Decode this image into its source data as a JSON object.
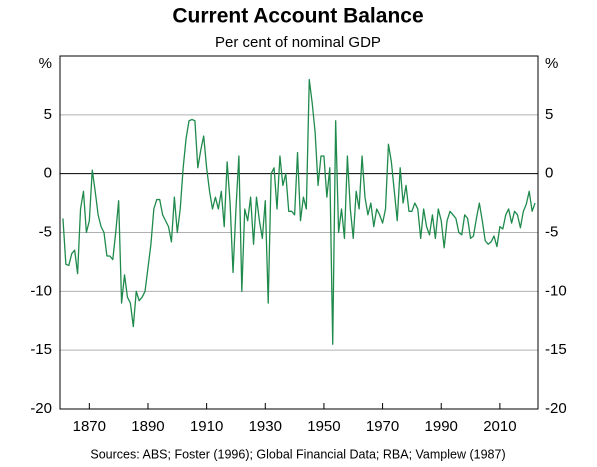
{
  "chart_data": {
    "type": "line",
    "title": "Current Account Balance",
    "subtitle": "Per cent of nominal GDP",
    "y_unit": "%",
    "source": "Sources:   ABS; Foster (1996); Global Financial Data; RBA; Vamplew (1987)",
    "xlim": [
      1860,
      2023
    ],
    "xticks": [
      1870,
      1890,
      1910,
      1930,
      1950,
      1970,
      1990,
      2010
    ],
    "ylim": [
      -20,
      10
    ],
    "yticks": [
      -20,
      -15,
      -10,
      -5,
      0,
      5
    ],
    "grid": true,
    "x": [
      1861,
      1862,
      1863,
      1864,
      1865,
      1866,
      1867,
      1868,
      1869,
      1870,
      1871,
      1872,
      1873,
      1874,
      1875,
      1876,
      1877,
      1878,
      1879,
      1880,
      1881,
      1882,
      1883,
      1884,
      1885,
      1886,
      1887,
      1888,
      1889,
      1890,
      1891,
      1892,
      1893,
      1894,
      1895,
      1896,
      1897,
      1898,
      1899,
      1900,
      1901,
      1902,
      1903,
      1904,
      1905,
      1906,
      1907,
      1908,
      1909,
      1910,
      1911,
      1912,
      1913,
      1914,
      1915,
      1916,
      1917,
      1918,
      1919,
      1920,
      1921,
      1922,
      1923,
      1924,
      1925,
      1926,
      1927,
      1928,
      1929,
      1930,
      1931,
      1932,
      1933,
      1934,
      1935,
      1936,
      1937,
      1938,
      1939,
      1940,
      1941,
      1942,
      1943,
      1944,
      1945,
      1946,
      1947,
      1948,
      1949,
      1950,
      1951,
      1952,
      1953,
      1954,
      1955,
      1956,
      1957,
      1958,
      1959,
      1960,
      1961,
      1962,
      1963,
      1964,
      1965,
      1966,
      1967,
      1968,
      1969,
      1970,
      1971,
      1972,
      1973,
      1974,
      1975,
      1976,
      1977,
      1978,
      1979,
      1980,
      1981,
      1982,
      1983,
      1984,
      1985,
      1986,
      1987,
      1988,
      1989,
      1990,
      1991,
      1992,
      1993,
      1994,
      1995,
      1996,
      1997,
      1998,
      1999,
      2000,
      2001,
      2002,
      2003,
      2004,
      2005,
      2006,
      2007,
      2008,
      2009,
      2010,
      2011,
      2012,
      2013,
      2014,
      2015,
      2016,
      2017,
      2018,
      2019,
      2020,
      2021,
      2022
    ],
    "series": [
      {
        "name": "Current account balance",
        "color": "#1f8a4c",
        "values": [
          -3.8,
          -7.7,
          -7.8,
          -6.8,
          -6.5,
          -8.5,
          -3,
          -1.5,
          -5,
          -4,
          0.3,
          -1.5,
          -3.5,
          -4.5,
          -5,
          -7,
          -7,
          -7.3,
          -5,
          -2.3,
          -11,
          -8.6,
          -10.5,
          -11,
          -13,
          -10,
          -10.8,
          -10.5,
          -10,
          -8,
          -6,
          -3,
          -2.2,
          -2.2,
          -3.5,
          -4,
          -4.5,
          -5.8,
          -2,
          -5,
          -3,
          0.5,
          3,
          4.5,
          4.6,
          4.5,
          0.5,
          2,
          3.2,
          0.5,
          -1.5,
          -3,
          -2,
          -3,
          -1.5,
          -4.5,
          1,
          -2.5,
          -8.4,
          -3,
          1.5,
          -10,
          -3,
          -4,
          -2,
          -6,
          -2,
          -4,
          -5.5,
          -2.3,
          -11,
          0,
          0.5,
          -3,
          1.5,
          -1,
          0,
          -3.2,
          -3.2,
          -3.5,
          1.8,
          -4,
          -2,
          -3,
          8,
          6,
          3.5,
          -1,
          1.5,
          1.5,
          -2,
          0.5,
          -14.5,
          4.5,
          -5,
          -3,
          -5.5,
          1.5,
          -3,
          -5.5,
          -1.5,
          -3,
          1.5,
          -2,
          -3.5,
          -2.5,
          -4.5,
          -3,
          -3.5,
          -4.2,
          -3,
          2.5,
          1,
          -1.5,
          -4,
          0.5,
          -2.5,
          -1,
          -3.2,
          -3.2,
          -2.5,
          -3,
          -5.5,
          -3,
          -4.5,
          -5.2,
          -3.5,
          -5.5,
          -3,
          -4,
          -6.3,
          -4,
          -3.2,
          -3.5,
          -3.8,
          -5,
          -5.2,
          -3.5,
          -3.8,
          -5.5,
          -5.3,
          -3.8,
          -2.5,
          -4,
          -5.7,
          -6,
          -5.8,
          -5.3,
          -6.2,
          -4.5,
          -4.7,
          -3.5,
          -3,
          -4.2,
          -3.2,
          -3.5,
          -4.6,
          -3.2,
          -2.6,
          -1.5,
          -3.2,
          -2.5
        ]
      }
    ]
  }
}
